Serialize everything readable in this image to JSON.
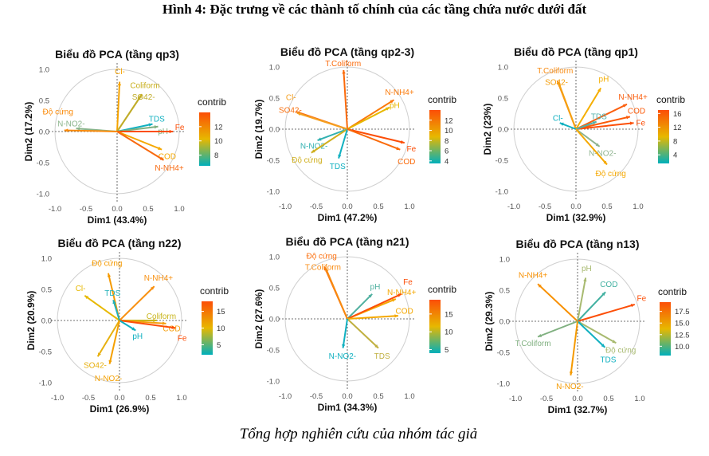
{
  "figure": {
    "title": "Hình 4: Đặc trưng về các thành tố chính của các tầng chứa nước dưới đất",
    "caption": "Tổng hợp nghiên cứu của nhóm tác giả"
  },
  "gradient_colors": [
    "#00AFBB",
    "#E7B800",
    "#FC4E07"
  ],
  "chart_data": [
    {
      "type": "pca-variable-biplot",
      "title": "Biểu đồ PCA (tầng qp3)",
      "xlabel": "Dim1 (43.4%)",
      "ylabel": "Dim2 (17.2%)",
      "xlim": [
        -1,
        1
      ],
      "ylim": [
        -1,
        1
      ],
      "xticks": [
        "-1.0",
        "-0.5",
        "0.0",
        "0.5",
        "1.0"
      ],
      "yticks": [
        "-1.0",
        "-0.5",
        "0.0",
        "0.5",
        "1.0"
      ],
      "legend": {
        "title": "contrib",
        "range": [
          6.5,
          14
        ],
        "ticks": [
          "8",
          "10",
          "12"
        ],
        "tick_values": [
          8,
          10,
          12
        ],
        "placement": "right"
      },
      "variables": [
        {
          "name": "Cl-",
          "x": 0.04,
          "y": 0.8,
          "color": "#F5A300"
        },
        {
          "name": "Coliform",
          "x": 0.4,
          "y": 0.6,
          "color": "#C8AE1A"
        },
        {
          "name": "SO42-",
          "x": 0.38,
          "y": 0.57,
          "color": "#C0AC2A"
        },
        {
          "name": "TDS",
          "x": 0.57,
          "y": 0.12,
          "color": "#10B0C0"
        },
        {
          "name": "pH",
          "x": 0.66,
          "y": 0.08,
          "color": "#80B080"
        },
        {
          "name": "Fe",
          "x": 0.9,
          "y": 0.0,
          "color": "#FC4E07"
        },
        {
          "name": "COD",
          "x": 0.72,
          "y": -0.29,
          "color": "#F5A800"
        },
        {
          "name": "N-NH4+",
          "x": 0.75,
          "y": -0.46,
          "color": "#F86A10"
        },
        {
          "name": "N-NO2-",
          "x": -0.66,
          "y": 0.05,
          "color": "#8AB48A"
        },
        {
          "name": "Độ cứng",
          "x": -0.85,
          "y": 0.02,
          "color": "#FA8A0A"
        }
      ]
    },
    {
      "type": "pca-variable-biplot",
      "title": "Biểu đồ PCA (tầng qp2-3)",
      "xlabel": "Dim1 (47.2%)",
      "ylabel": "Dim2 (19.7%)",
      "xlim": [
        -1,
        1
      ],
      "ylim": [
        -1,
        1
      ],
      "xticks": [
        "-1.0",
        "-0.5",
        "0.0",
        "0.5",
        "1.0"
      ],
      "yticks": [
        "-1.0",
        "-0.5",
        "0.0",
        "0.5",
        "1.0"
      ],
      "legend": {
        "title": "contrib",
        "range": [
          3.5,
          14
        ],
        "ticks": [
          "4",
          "6",
          "8",
          "10",
          "12"
        ],
        "tick_values": [
          4,
          6,
          8,
          10,
          12
        ],
        "placement": "right"
      },
      "variables": [
        {
          "name": "T.Coliform",
          "x": -0.06,
          "y": 0.95,
          "color": "#FB6A0A"
        },
        {
          "name": "N-NH4+",
          "x": 0.75,
          "y": 0.47,
          "color": "#FB7A0A"
        },
        {
          "name": "pH",
          "x": 0.68,
          "y": 0.35,
          "color": "#E7B800"
        },
        {
          "name": "SO42-",
          "x": -0.82,
          "y": 0.28,
          "color": "#F87010"
        },
        {
          "name": "Cl-",
          "x": -0.81,
          "y": 0.26,
          "color": "#F5A020"
        },
        {
          "name": "N-NO2-",
          "x": -0.48,
          "y": -0.18,
          "color": "#30B0B0"
        },
        {
          "name": "Độ cứng",
          "x": -0.58,
          "y": -0.38,
          "color": "#D0B020"
        },
        {
          "name": "TDS",
          "x": -0.14,
          "y": -0.47,
          "color": "#10B0C0"
        },
        {
          "name": "Fe",
          "x": 0.92,
          "y": -0.22,
          "color": "#FC4E07"
        },
        {
          "name": "COD",
          "x": 0.85,
          "y": -0.33,
          "color": "#FA6A0A"
        }
      ]
    },
    {
      "type": "pca-variable-biplot",
      "title": "Biểu đồ PCA (tầng qp1)",
      "xlabel": "Dim1 (32.9%)",
      "ylabel": "Dim2 (23%)",
      "xlim": [
        -1,
        1
      ],
      "ylim": [
        -1,
        1
      ],
      "xticks": [
        "-1.0",
        "-0.5",
        "0.0",
        "0.5",
        "1.0"
      ],
      "yticks": [
        "-1.0",
        "-0.5",
        "0.0",
        "0.5",
        "1.0"
      ],
      "legend": {
        "title": "contrib",
        "range": [
          1.5,
          17
        ],
        "ticks": [
          "4",
          "8",
          "12",
          "16"
        ],
        "tick_values": [
          4,
          8,
          12,
          16
        ],
        "placement": "right"
      },
      "variables": [
        {
          "name": "T.Coliform",
          "x": -0.3,
          "y": 0.78,
          "color": "#F88A10"
        },
        {
          "name": "SO42-",
          "x": -0.28,
          "y": 0.75,
          "color": "#F5A010"
        },
        {
          "name": "pH",
          "x": 0.4,
          "y": 0.66,
          "color": "#F5AE00"
        },
        {
          "name": "N-NH4+",
          "x": 0.82,
          "y": 0.4,
          "color": "#FB6010"
        },
        {
          "name": "COD",
          "x": 0.87,
          "y": 0.2,
          "color": "#FB5A08"
        },
        {
          "name": "Fe",
          "x": 0.93,
          "y": 0.1,
          "color": "#FC4E07"
        },
        {
          "name": "Cl-",
          "x": -0.26,
          "y": 0.1,
          "color": "#10B0C0"
        },
        {
          "name": "TDS",
          "x": 0.33,
          "y": 0.12,
          "color": "#50B0A8"
        },
        {
          "name": "N-NO2-",
          "x": 0.38,
          "y": -0.28,
          "color": "#90B490"
        },
        {
          "name": "Độ cứng",
          "x": 0.5,
          "y": -0.57,
          "color": "#F5A800"
        }
      ]
    },
    {
      "type": "pca-variable-biplot",
      "title": "Biểu đồ PCA (tầng n22)",
      "xlabel": "Dim1 (26.9%)",
      "ylabel": "Dim2 (20.9%)",
      "xlim": [
        -1,
        1
      ],
      "ylim": [
        -1,
        1
      ],
      "xticks": [
        "-1.0",
        "-0.5",
        "0.0",
        "0.5",
        "1.0"
      ],
      "yticks": [
        "-1.0",
        "-0.5",
        "0.0",
        "0.5",
        "1.0"
      ],
      "legend": {
        "title": "contrib",
        "range": [
          2,
          18
        ],
        "ticks": [
          "5",
          "10",
          "15"
        ],
        "tick_values": [
          5,
          10,
          15
        ],
        "placement": "right"
      },
      "variables": [
        {
          "name": "Độ cứng",
          "x": -0.18,
          "y": 0.76,
          "color": "#F59A00"
        },
        {
          "name": "N-NH4+",
          "x": 0.56,
          "y": 0.55,
          "color": "#F89010"
        },
        {
          "name": "Cl-",
          "x": -0.56,
          "y": 0.4,
          "color": "#E7B800"
        },
        {
          "name": "TDS",
          "x": -0.1,
          "y": 0.33,
          "color": "#20B0B8"
        },
        {
          "name": "Coliform",
          "x": 0.6,
          "y": 0.0,
          "color": "#C8B41A"
        },
        {
          "name": "COD",
          "x": 0.75,
          "y": -0.05,
          "color": "#F5A010"
        },
        {
          "name": "Fe",
          "x": 0.9,
          "y": -0.12,
          "color": "#FC4E07"
        },
        {
          "name": "pH",
          "x": 0.26,
          "y": -0.16,
          "color": "#10B0C0"
        },
        {
          "name": "SO42-",
          "x": -0.35,
          "y": -0.58,
          "color": "#E7B010"
        },
        {
          "name": "N-NO2-",
          "x": -0.16,
          "y": -0.7,
          "color": "#F5A000"
        }
      ]
    },
    {
      "type": "pca-variable-biplot",
      "title": "Biểu đồ PCA (tầng n21)",
      "xlabel": "Dim1 (34.3%)",
      "ylabel": "Dim2 (27.6%)",
      "xlim": [
        -1,
        1
      ],
      "ylim": [
        -1,
        1
      ],
      "xticks": [
        "-1.0",
        "-0.5",
        "0.0",
        "0.5",
        "1.0"
      ],
      "yticks": [
        "-1.0",
        "-0.5",
        "0.0",
        "0.5",
        "1.0"
      ],
      "legend": {
        "title": "contrib",
        "range": [
          4,
          19
        ],
        "ticks": [
          "5",
          "10",
          "15"
        ],
        "tick_values": [
          5,
          10,
          15
        ],
        "placement": "right"
      },
      "variables": [
        {
          "name": "Độ cứng",
          "x": -0.37,
          "y": 0.84,
          "color": "#FB7010"
        },
        {
          "name": "T.Coliform",
          "x": -0.35,
          "y": 0.82,
          "color": "#F88A10"
        },
        {
          "name": "pH",
          "x": 0.4,
          "y": 0.4,
          "color": "#50B0A0"
        },
        {
          "name": "N-NH4+",
          "x": 0.78,
          "y": 0.32,
          "color": "#F5A800"
        },
        {
          "name": "Fe",
          "x": 0.87,
          "y": 0.4,
          "color": "#FC4E07"
        },
        {
          "name": "COD",
          "x": 0.82,
          "y": 0.05,
          "color": "#F5A800"
        },
        {
          "name": "TDS",
          "x": 0.5,
          "y": -0.47,
          "color": "#C0B040"
        },
        {
          "name": "N-NO2-",
          "x": -0.07,
          "y": -0.47,
          "color": "#10B0C0"
        }
      ]
    },
    {
      "type": "pca-variable-biplot",
      "title": "Biểu đồ PCA (tầng n13)",
      "xlabel": "Dim1 (32.7%)",
      "ylabel": "Dim2 (29.3%)",
      "xlim": [
        -1,
        1
      ],
      "ylim": [
        -1,
        1
      ],
      "xticks": [
        "-1.0",
        "-0.5",
        "0.0",
        "0.5",
        "1.0"
      ],
      "yticks": [
        "-1.0",
        "-0.5",
        "0.0",
        "0.5",
        "1.0"
      ],
      "legend": {
        "title": "contrib",
        "range": [
          8,
          19.5
        ],
        "ticks": [
          "10.0",
          "12.5",
          "15.0",
          "17.5"
        ],
        "tick_values": [
          10,
          12.5,
          15,
          17.5
        ],
        "placement": "right"
      },
      "variables": [
        {
          "name": "N-NH4+",
          "x": -0.64,
          "y": 0.6,
          "color": "#F89000"
        },
        {
          "name": "pH",
          "x": 0.13,
          "y": 0.7,
          "color": "#A8BA70"
        },
        {
          "name": "COD",
          "x": 0.45,
          "y": 0.47,
          "color": "#40B0A0"
        },
        {
          "name": "Fe",
          "x": 0.92,
          "y": 0.27,
          "color": "#FC4E07"
        },
        {
          "name": "Độ cứng",
          "x": 0.62,
          "y": -0.35,
          "color": "#A8BA70"
        },
        {
          "name": "TDS",
          "x": 0.44,
          "y": -0.42,
          "color": "#10B0C0"
        },
        {
          "name": "T.Coliform",
          "x": -0.64,
          "y": -0.25,
          "color": "#80B080"
        },
        {
          "name": "N-NO2-",
          "x": -0.11,
          "y": -0.87,
          "color": "#F59A00"
        }
      ]
    }
  ]
}
